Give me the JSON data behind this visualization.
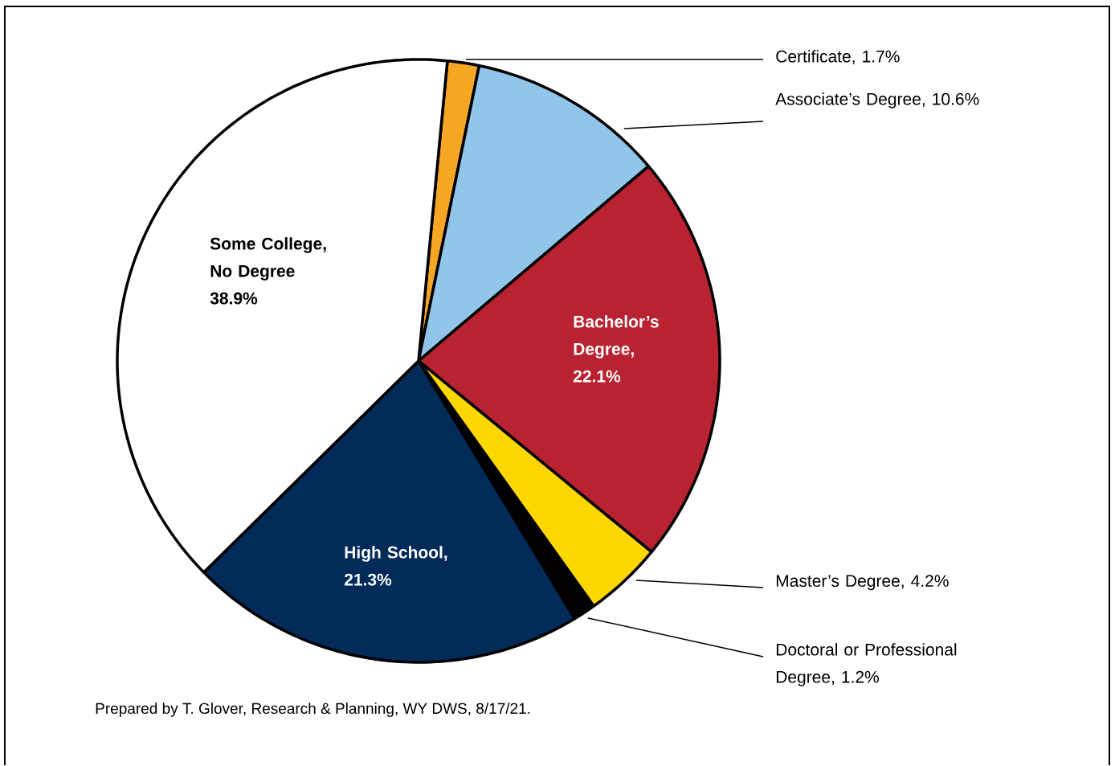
{
  "chart_data": {
    "type": "pie",
    "categories": [
      "Certificate, 1.7%",
      "Associate’s Degree, 10.6%",
      "Bachelor’s Degree, 22.1%",
      "Master’s Degree, 4.2%",
      "Doctoral or Professional Degree, 1.2%",
      "High School, 21.3%",
      "Some College, No Degree 38.9%"
    ],
    "values": [
      1.7,
      10.6,
      22.1,
      4.2,
      1.2,
      21.3,
      38.9
    ],
    "colors": [
      "#f5a623",
      "#92c5ea",
      "#b92231",
      "#ffd700",
      "#000000",
      "#022b5a",
      "#ffffff"
    ],
    "annotations": [
      "Prepared by T. Glover, Research & Planning, WY DWS, 8/17/21."
    ]
  }
}
